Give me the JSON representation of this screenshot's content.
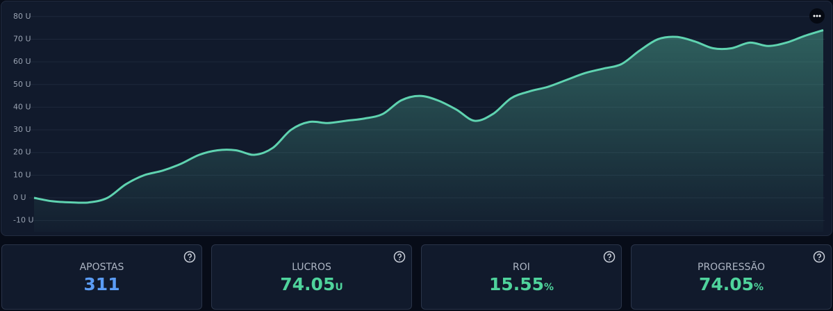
{
  "chart_data": {
    "type": "area",
    "values": [
      0,
      -1.5,
      -2,
      -2,
      0,
      6,
      10,
      12,
      15,
      19,
      21,
      21,
      19,
      22,
      30,
      33.5,
      33,
      34,
      35,
      37,
      43,
      45,
      43,
      39,
      34,
      37,
      44,
      47,
      49,
      52,
      55,
      57,
      59,
      65,
      70,
      71,
      69,
      66,
      66,
      68.5,
      67,
      68.5,
      71.5,
      74
    ],
    "color": "#5fd3b0",
    "ylim": [
      -15,
      83
    ],
    "yticks": [
      {
        "value": -10,
        "label": "-10 U"
      },
      {
        "value": 0,
        "label": "0 U"
      },
      {
        "value": 10,
        "label": "10 U"
      },
      {
        "value": 20,
        "label": "20 U"
      },
      {
        "value": 30,
        "label": "30 U"
      },
      {
        "value": 40,
        "label": "40 U"
      },
      {
        "value": 50,
        "label": "50 U"
      },
      {
        "value": 60,
        "label": "60 U"
      },
      {
        "value": 70,
        "label": "70 U"
      },
      {
        "value": 80,
        "label": "80 U"
      }
    ],
    "grid": true
  },
  "stats": [
    {
      "label": "APOSTAS",
      "value": 311,
      "color": "#5b9cf5"
    },
    {
      "label": "LUCROS",
      "value": 74.05,
      "unit": "U",
      "color": "#4fd39c"
    },
    {
      "label": "ROI",
      "value": 15.55,
      "unit": "%",
      "color": "#4fd39c"
    },
    {
      "label": "PROGRESSÃO",
      "value": 74.05,
      "unit": "%",
      "color": "#4fd39c"
    }
  ]
}
